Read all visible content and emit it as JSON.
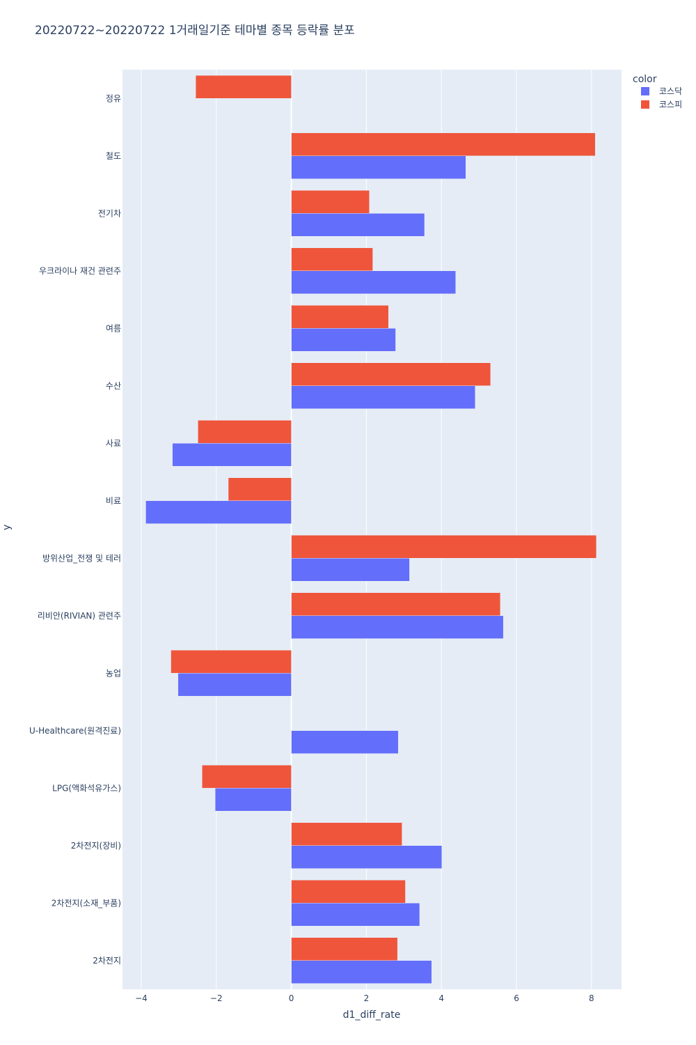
{
  "chart_data": {
    "type": "bar",
    "orientation": "horizontal",
    "title": "20220722~20220722 1거래일기준 테마별 종목 등락률 분포",
    "xlabel": "d1_diff_rate",
    "ylabel": "y",
    "xlim": [
      -4.5,
      8.8
    ],
    "xticks": [
      -4,
      -2,
      0,
      2,
      4,
      6,
      8
    ],
    "xtick_labels": [
      "−4",
      "−2",
      "0",
      "2",
      "4",
      "6",
      "8"
    ],
    "grid": true,
    "legend_title": "color",
    "legend_position": "top-right",
    "categories": [
      "정유",
      "철도",
      "전기차",
      "우크라이나 재건 관련주",
      "여름",
      "수산",
      "사료",
      "비료",
      "방위산업_전쟁 및 테러",
      "리비안(RIVIAN) 관련주",
      "농업",
      "U-Healthcare(원격진료)",
      "LPG(액화석유가스)",
      "2차전지(장비)",
      "2차전지(소재_부품)",
      "2차전지"
    ],
    "series": [
      {
        "name": "코스닥",
        "color": "#636efa",
        "values": [
          null,
          4.65,
          3.55,
          4.38,
          2.78,
          4.9,
          -3.17,
          -3.88,
          3.15,
          5.65,
          -3.02,
          2.85,
          -2.03,
          4.01,
          3.42,
          3.74
        ]
      },
      {
        "name": "코스피",
        "color": "#ef553b",
        "values": [
          -2.55,
          8.1,
          2.08,
          2.17,
          2.59,
          5.31,
          -2.49,
          -1.68,
          8.13,
          5.57,
          -3.21,
          null,
          -2.38,
          2.95,
          3.04,
          2.83
        ]
      }
    ]
  }
}
